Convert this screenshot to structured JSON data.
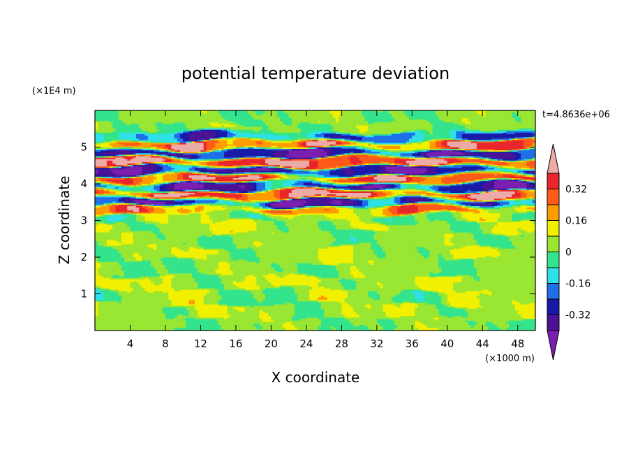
{
  "chart_data": {
    "type": "heatmap",
    "title": "potential temperature deviation",
    "xlabel": "X coordinate",
    "ylabel": "Z coordinate",
    "x_unit": "(×1000 m)",
    "y_unit": "(×1E4 m)",
    "time_label": "t=4.8636e+06",
    "xlim": [
      0,
      50
    ],
    "ylim": [
      0,
      6
    ],
    "x_ticks": [
      4,
      8,
      12,
      16,
      20,
      24,
      28,
      32,
      36,
      40,
      44,
      48
    ],
    "y_ticks": [
      1,
      2,
      3,
      4,
      5
    ],
    "x_tick_labels": [
      "4",
      "8",
      "12",
      "16",
      "20",
      "24",
      "28",
      "32",
      "36",
      "40",
      "44",
      "48"
    ],
    "y_tick_labels": [
      "1",
      "2",
      "3",
      "4",
      "5"
    ],
    "colorbar": {
      "levels": [
        -0.4,
        -0.32,
        -0.24,
        -0.16,
        -0.08,
        0,
        0.08,
        0.16,
        0.24,
        0.32,
        0.4
      ],
      "colors": [
        "#7a1fb0",
        "#4b1296",
        "#1a1aa8",
        "#1f6fe8",
        "#2ee0e8",
        "#33e48c",
        "#99e633",
        "#f0f000",
        "#ff9d00",
        "#ff5a1a",
        "#e8262b",
        "#eeaaa6"
      ],
      "tick_labels": [
        "0.32",
        "0.16",
        "0",
        "-0.16",
        "-0.32"
      ],
      "tick_values": [
        0.32,
        0.16,
        0,
        -0.16,
        -0.32
      ]
    },
    "bands": [
      {
        "z": 0.15,
        "v": 0.02,
        "amp": 0.04
      },
      {
        "z": 0.5,
        "v": 0.05,
        "amp": 0.05
      },
      {
        "z": 0.95,
        "v": 0.03,
        "amp": 0.08
      },
      {
        "z": 1.3,
        "v": 0.06,
        "amp": 0.05
      },
      {
        "z": 1.7,
        "v": 0.02,
        "amp": 0.05
      },
      {
        "z": 2.1,
        "v": 0.05,
        "amp": 0.05
      },
      {
        "z": 2.5,
        "v": 0.02,
        "amp": 0.05
      },
      {
        "z": 2.85,
        "v": 0.05,
        "amp": 0.06
      },
      {
        "z": 3.1,
        "v": 0.02,
        "amp": 0.08
      },
      {
        "z": 3.3,
        "v": 0.22,
        "amp": 0.12
      },
      {
        "z": 3.5,
        "v": -0.33,
        "amp": 0.15
      },
      {
        "z": 3.7,
        "v": 0.36,
        "amp": 0.12
      },
      {
        "z": 3.95,
        "v": -0.3,
        "amp": 0.15
      },
      {
        "z": 4.15,
        "v": 0.34,
        "amp": 0.12
      },
      {
        "z": 4.35,
        "v": -0.34,
        "amp": 0.12
      },
      {
        "z": 4.6,
        "v": 0.36,
        "amp": 0.1
      },
      {
        "z": 4.85,
        "v": -0.35,
        "amp": 0.12
      },
      {
        "z": 5.05,
        "v": 0.3,
        "amp": 0.15
      },
      {
        "z": 5.3,
        "v": -0.2,
        "amp": 0.12
      },
      {
        "z": 5.5,
        "v": 0.03,
        "amp": 0.05
      },
      {
        "z": 5.8,
        "v": 0.02,
        "amp": 0.04
      }
    ]
  }
}
